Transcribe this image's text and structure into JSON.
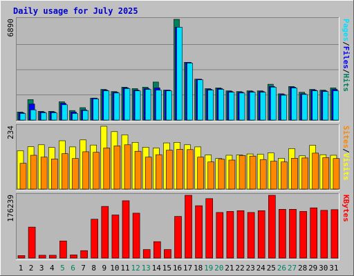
{
  "colors": {
    "background": "#c0c0c0",
    "plot_background": "#b8b8b8",
    "title": "#0000cc",
    "hits": "#00805c",
    "files": "#0000ff",
    "pages": "#00e0ff",
    "visits": "#ffff00",
    "sites": "#ff8800",
    "kbytes": "#ff0000",
    "weekend_day": "#00805c",
    "weekday": "#000000"
  },
  "chart_data": [
    {
      "type": "bar",
      "title": "Daily usage for July 2025",
      "y_max_label": "6890",
      "ylim": [
        0,
        6890
      ],
      "legend": {
        "placement": "right",
        "labels": [
          {
            "text": "Pages",
            "color": "#00e0ff"
          },
          {
            "text": "/",
            "color": "#000000"
          },
          {
            "text": "Files",
            "color": "#0000ff"
          },
          {
            "text": "/",
            "color": "#000000"
          },
          {
            "text": "Hits",
            "color": "#00805c"
          }
        ]
      },
      "categories": [
        "1",
        "2",
        "3",
        "4",
        "5",
        "6",
        "7",
        "8",
        "9",
        "10",
        "11",
        "12",
        "13",
        "14",
        "15",
        "16",
        "17",
        "18",
        "19",
        "20",
        "21",
        "22",
        "23",
        "24",
        "25",
        "26",
        "27",
        "28",
        "29",
        "30",
        "31"
      ],
      "series": [
        {
          "name": "Hits",
          "values": [
            550,
            1400,
            600,
            600,
            1250,
            650,
            850,
            1500,
            2100,
            1950,
            2250,
            2150,
            2250,
            2600,
            2050,
            6890,
            3950,
            2800,
            2150,
            2200,
            2000,
            1950,
            2000,
            2000,
            2450,
            1800,
            2300,
            1900,
            2100,
            2050,
            2200
          ]
        },
        {
          "name": "Files",
          "values": [
            500,
            1100,
            550,
            550,
            1150,
            550,
            700,
            1500,
            2050,
            1900,
            2200,
            2050,
            2150,
            2200,
            2050,
            6350,
            3950,
            2800,
            2100,
            2150,
            1950,
            1900,
            1950,
            1950,
            2300,
            1750,
            2250,
            1800,
            2050,
            2000,
            2100
          ]
        },
        {
          "name": "Pages",
          "values": [
            450,
            700,
            500,
            500,
            1050,
            450,
            650,
            1450,
            2000,
            1850,
            2150,
            2000,
            2100,
            2050,
            2000,
            6350,
            3900,
            2750,
            2050,
            2100,
            1900,
            1850,
            1900,
            1900,
            2250,
            1700,
            2200,
            1750,
            2000,
            1950,
            2000
          ]
        }
      ]
    },
    {
      "type": "bar",
      "y_max_label": "234",
      "ylim": [
        0,
        234
      ],
      "legend": {
        "placement": "right",
        "labels": [
          {
            "text": "Sites",
            "color": "#ff8800"
          },
          {
            "text": "/",
            "color": "#000000"
          },
          {
            "text": "Visits",
            "color": "#ffff00"
          }
        ]
      },
      "categories": [
        "1",
        "2",
        "3",
        "4",
        "5",
        "6",
        "7",
        "8",
        "9",
        "10",
        "11",
        "12",
        "13",
        "14",
        "15",
        "16",
        "17",
        "18",
        "19",
        "20",
        "21",
        "22",
        "23",
        "24",
        "25",
        "26",
        "27",
        "28",
        "29",
        "30",
        "31"
      ],
      "series": [
        {
          "name": "Visits",
          "values": [
            143,
            158,
            165,
            155,
            180,
            157,
            183,
            164,
            234,
            214,
            202,
            174,
            156,
            153,
            172,
            174,
            165,
            157,
            127,
            114,
            126,
            127,
            131,
            130,
            135,
            115,
            151,
            124,
            163,
            128,
            126
          ]
        },
        {
          "name": "Sites",
          "values": [
            96,
            126,
            119,
            112,
            132,
            114,
            139,
            137,
            153,
            161,
            165,
            141,
            119,
            128,
            145,
            148,
            147,
            119,
            101,
            111,
            108,
            125,
            123,
            110,
            104,
            101,
            115,
            116,
            134,
            117,
            114
          ]
        }
      ]
    },
    {
      "type": "bar",
      "y_max_label": "176239",
      "ylim": [
        0,
        176239
      ],
      "legend": {
        "placement": "right",
        "labels": [
          {
            "text": "KBytes",
            "color": "#ff0000"
          }
        ]
      },
      "categories": [
        "1",
        "2",
        "3",
        "4",
        "5",
        "6",
        "7",
        "8",
        "9",
        "10",
        "11",
        "12",
        "13",
        "14",
        "15",
        "16",
        "17",
        "18",
        "19",
        "20",
        "21",
        "22",
        "23",
        "24",
        "25",
        "26",
        "27",
        "28",
        "29",
        "30",
        "31"
      ],
      "series": [
        {
          "name": "KBytes",
          "values": [
            7000,
            87000,
            8000,
            8000,
            48000,
            9000,
            21000,
            109000,
            145000,
            121000,
            161000,
            126000,
            24000,
            46000,
            24000,
            117000,
            176239,
            147000,
            167000,
            128000,
            131000,
            133000,
            128000,
            133000,
            176239,
            137000,
            137000,
            131000,
            141000,
            134000,
            136000
          ]
        }
      ]
    }
  ],
  "x_axis": {
    "labels": [
      {
        "text": "1",
        "weekend": false
      },
      {
        "text": "2",
        "weekend": false
      },
      {
        "text": "3",
        "weekend": false
      },
      {
        "text": "4",
        "weekend": false
      },
      {
        "text": "5",
        "weekend": true
      },
      {
        "text": "6",
        "weekend": true
      },
      {
        "text": "7",
        "weekend": false
      },
      {
        "text": "8",
        "weekend": false
      },
      {
        "text": "9",
        "weekend": false
      },
      {
        "text": "10",
        "weekend": false
      },
      {
        "text": "11",
        "weekend": false
      },
      {
        "text": "12",
        "weekend": true
      },
      {
        "text": "13",
        "weekend": true
      },
      {
        "text": "14",
        "weekend": false
      },
      {
        "text": "15",
        "weekend": false
      },
      {
        "text": "16",
        "weekend": false
      },
      {
        "text": "17",
        "weekend": false
      },
      {
        "text": "18",
        "weekend": false
      },
      {
        "text": "19",
        "weekend": true
      },
      {
        "text": "20",
        "weekend": true
      },
      {
        "text": "21",
        "weekend": false
      },
      {
        "text": "22",
        "weekend": false
      },
      {
        "text": "23",
        "weekend": false
      },
      {
        "text": "24",
        "weekend": false
      },
      {
        "text": "25",
        "weekend": false
      },
      {
        "text": "26",
        "weekend": true
      },
      {
        "text": "27",
        "weekend": true
      },
      {
        "text": "28",
        "weekend": false
      },
      {
        "text": "29",
        "weekend": false
      },
      {
        "text": "30",
        "weekend": false
      },
      {
        "text": "31",
        "weekend": false
      }
    ]
  }
}
